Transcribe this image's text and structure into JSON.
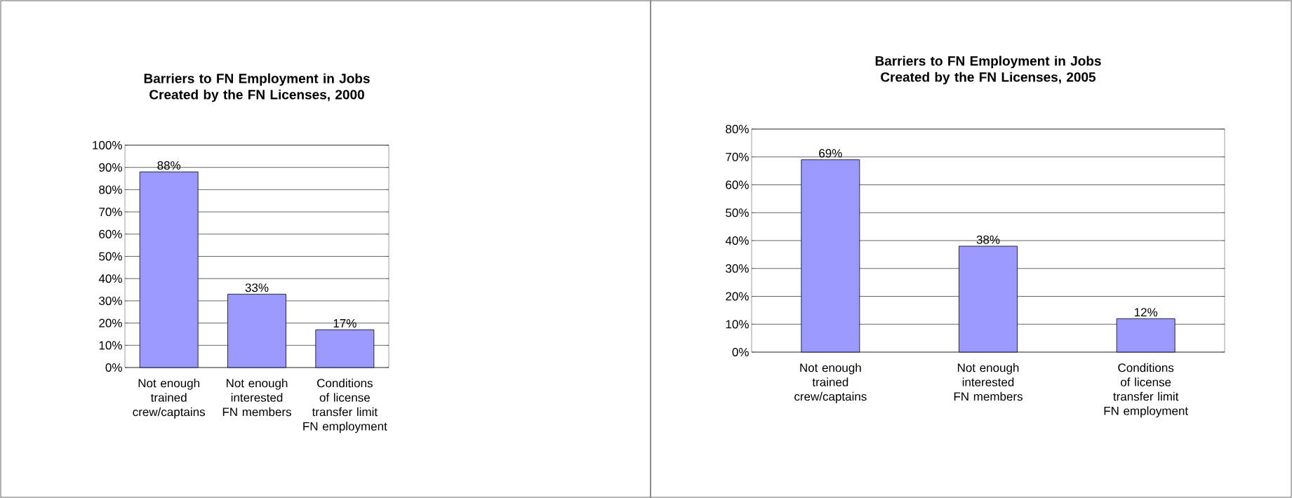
{
  "chart_data": [
    {
      "type": "bar",
      "title": "Barriers to FN Employment in Jobs Created by the FN Licenses, 2000",
      "categories": [
        "Not enough trained crew/captains",
        "Not enough interested FN members",
        "Conditions of license transfer limit FN employment"
      ],
      "values": [
        88,
        33,
        17
      ],
      "value_labels": [
        "88%",
        "33%",
        "17%"
      ],
      "color": "#9999ff",
      "ylim": [
        0,
        100
      ],
      "yticks": [
        {
          "value": 0,
          "label": "0%"
        },
        {
          "value": 10,
          "label": "10%"
        },
        {
          "value": 20,
          "label": "20%"
        },
        {
          "value": 30,
          "label": "30%"
        },
        {
          "value": 40,
          "label": "40%"
        },
        {
          "value": 50,
          "label": "50%"
        },
        {
          "value": 60,
          "label": "60%"
        },
        {
          "value": 70,
          "label": "70%"
        },
        {
          "value": 80,
          "label": "80%"
        },
        {
          "value": 90,
          "label": "90%"
        },
        {
          "value": 100,
          "label": "100%"
        }
      ],
      "grid": "y"
    },
    {
      "type": "bar",
      "title": "Barriers to FN Employment in Jobs Created by the FN Licenses, 2005",
      "categories": [
        "Not enough trained crew/captains",
        "Not enough interested FN members",
        "Conditions of license transfer limit FN employment"
      ],
      "values": [
        69,
        38,
        12
      ],
      "value_labels": [
        "69%",
        "38%",
        "12%"
      ],
      "color": "#9999ff",
      "ylim": [
        0,
        80
      ],
      "yticks": [
        {
          "value": 0,
          "label": "0%"
        },
        {
          "value": 10,
          "label": "10%"
        },
        {
          "value": 20,
          "label": "20%"
        },
        {
          "value": 30,
          "label": "30%"
        },
        {
          "value": 40,
          "label": "40%"
        },
        {
          "value": 50,
          "label": "50%"
        },
        {
          "value": 60,
          "label": "60%"
        },
        {
          "value": 70,
          "label": "70%"
        },
        {
          "value": 80,
          "label": "80%"
        }
      ],
      "grid": "y"
    }
  ]
}
